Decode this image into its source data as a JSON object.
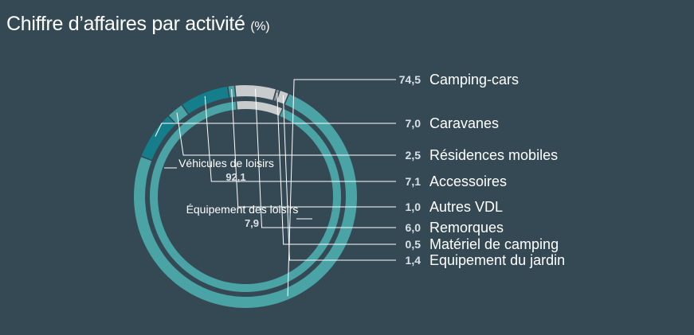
{
  "chart_data": {
    "type": "pie",
    "title": "Chiffre d’affaires par activité",
    "unit": "(%)",
    "inner": [
      {
        "name": "Véhicules de loisirs",
        "value": 92.1,
        "label": "92,1",
        "color": "#4aa3a5"
      },
      {
        "name": "Équipement des loisirs",
        "value": 7.9,
        "label": "7,9",
        "color": "#c9cccd"
      }
    ],
    "outer": [
      {
        "name": "Camping-cars",
        "value": 74.5,
        "label": "74,5",
        "color": "#4aa3a5"
      },
      {
        "name": "Caravanes",
        "value": 7.0,
        "label": "7,0",
        "color": "#157e8b"
      },
      {
        "name": "Résidences mobiles",
        "value": 2.5,
        "label": "2,5",
        "color": "#4aa3a5"
      },
      {
        "name": "Accessoires",
        "value": 7.1,
        "label": "7,1",
        "color": "#157e8b"
      },
      {
        "name": "Autres VDL",
        "value": 1.0,
        "label": "1,0",
        "color": "#4aa3a5"
      },
      {
        "name": "Remorques",
        "value": 6.0,
        "label": "6,0",
        "color": "#c9cccd"
      },
      {
        "name": "Matériel de camping",
        "value": 0.5,
        "label": "0,5",
        "color": "#8f9599"
      },
      {
        "name": "Equipement du jardin",
        "value": 1.4,
        "label": "1,4",
        "color": "#c9cccd"
      }
    ]
  }
}
